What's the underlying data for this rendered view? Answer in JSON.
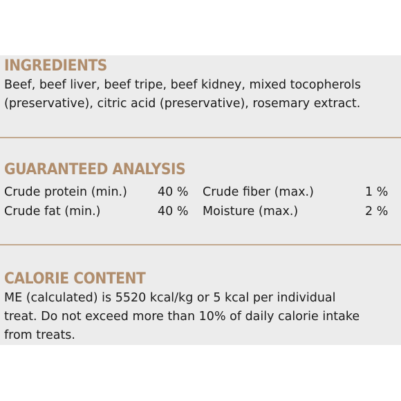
{
  "ingredients": {
    "heading": "INGREDIENTS",
    "line1": "Beef, beef liver, beef tripe, beef kidney, mixed tocopherols",
    "line2": "(preservative), citric acid (preservative), rosemary extract."
  },
  "analysis": {
    "heading": "GUARANTEED ANALYSIS",
    "rows": [
      {
        "left_name": "Crude protein (min.)",
        "left_value": "40 %",
        "right_name": "Crude fiber (max.)",
        "right_value": "1 %"
      },
      {
        "left_name": "Crude fat (min.)",
        "left_value": "40 %",
        "right_name": "Moisture (max.)",
        "right_value": "2 %"
      }
    ]
  },
  "calorie": {
    "heading": "CALORIE CONTENT",
    "line1": "ME (calculated) is 5520 kcal/kg or 5 kcal per individual",
    "line2": "treat. Do not exceed more than 10% of daily calorie intake",
    "line3": "from treats."
  },
  "colors": {
    "heading": "#b08d6c",
    "divider": "#c2a88d",
    "panel_background": "#ececec",
    "text": "#1a1a1a"
  }
}
